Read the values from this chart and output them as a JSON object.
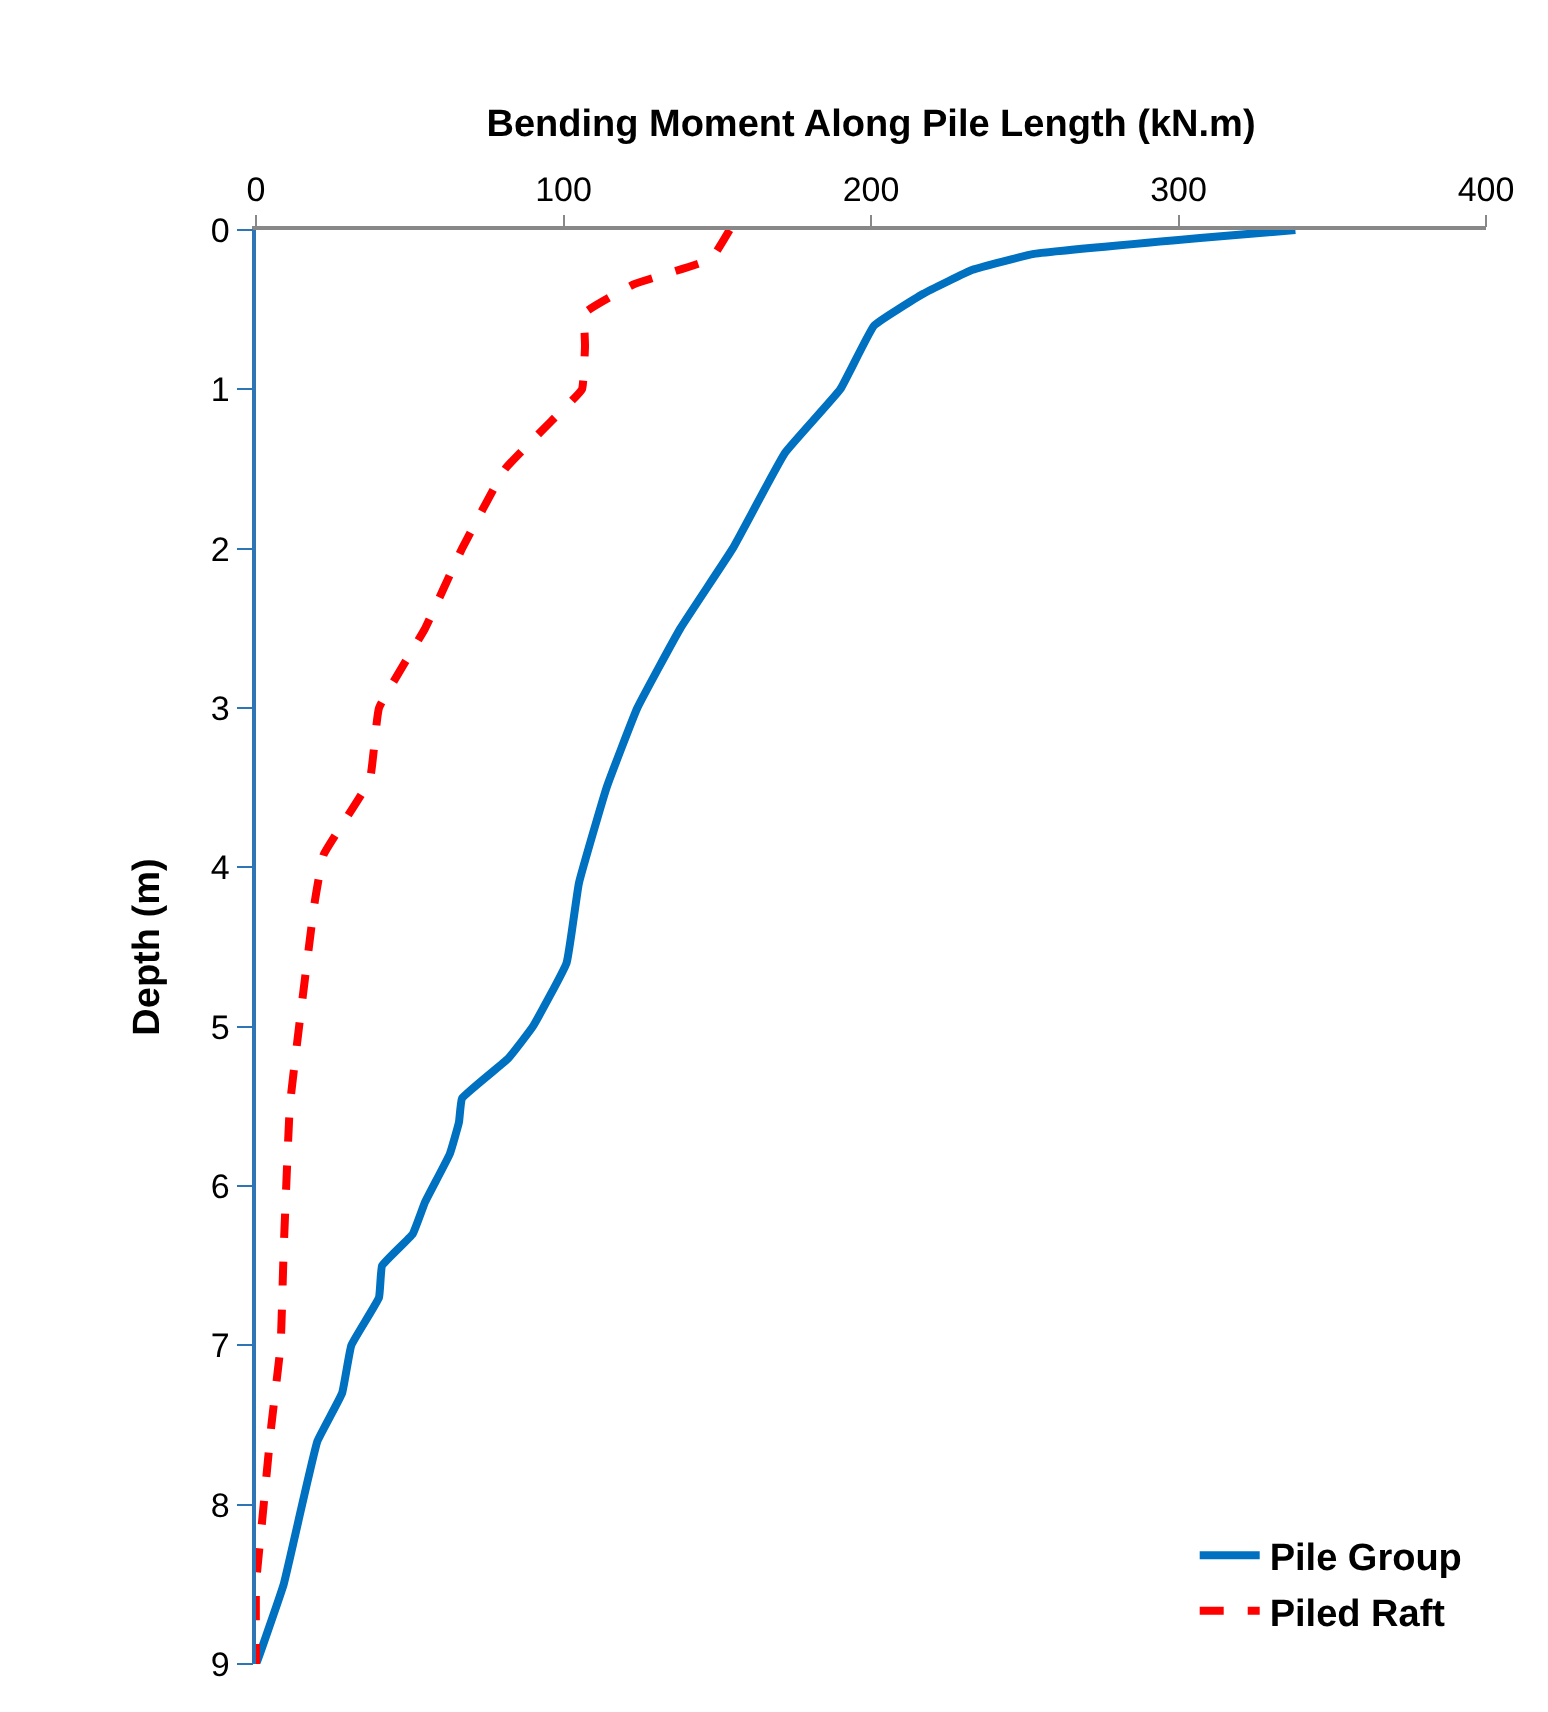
{
  "chart_data": {
    "type": "line",
    "xlabel": "Bending Moment Along Pile Length (kN.m)",
    "ylabel": "Depth (m)",
    "xlim": [
      0,
      400
    ],
    "xticks": [
      0,
      100,
      200,
      300,
      400
    ],
    "ylim": [
      9,
      0
    ],
    "yticks": [
      0,
      1,
      2,
      3,
      4,
      5,
      6,
      7,
      8,
      9
    ],
    "legend": "bottom right",
    "marker": "none",
    "series": [
      {
        "name": "Pile Group",
        "color": "#0070c0",
        "line_style": "solid",
        "x": [
          338,
          307,
          253,
          233,
          217,
          201,
          190,
          172,
          155,
          138,
          124,
          114,
          105,
          101,
          90,
          82,
          67,
          66,
          63,
          55,
          51,
          41,
          40,
          31,
          28,
          20,
          15,
          9,
          1,
          0
        ],
        "values": [
          0,
          0.05,
          0.15,
          0.25,
          0.4,
          0.6,
          1.0,
          1.4,
          2.0,
          2.5,
          3.0,
          3.5,
          4.1,
          4.6,
          5.0,
          5.2,
          5.45,
          5.6,
          5.8,
          6.1,
          6.3,
          6.5,
          6.7,
          7.0,
          7.3,
          7.6,
          8.0,
          8.5,
          8.95,
          9
        ]
      },
      {
        "name": "Piled Raft",
        "color": "#ff0000",
        "line_style": "dashed",
        "x": [
          154,
          148,
          123,
          107,
          107,
          106,
          96,
          81,
          67,
          55,
          40,
          37,
          22,
          19,
          14,
          11,
          9,
          8,
          5,
          2,
          0,
          0
        ],
        "values": [
          0,
          0.18,
          0.34,
          0.52,
          0.73,
          1.0,
          1.2,
          1.5,
          2.0,
          2.5,
          3.0,
          3.45,
          3.92,
          4.23,
          5.0,
          5.5,
          6.4,
          7.0,
          7.5,
          8.1,
          8.5,
          9
        ]
      }
    ]
  }
}
